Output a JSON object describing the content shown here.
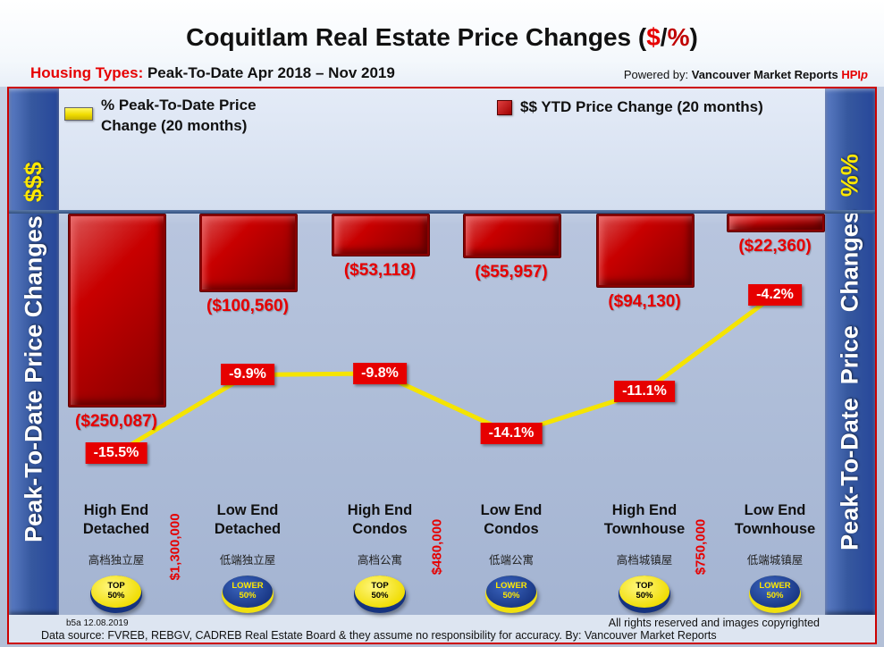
{
  "header": {
    "title_main": "Coquitlam Real Estate Price Changes (",
    "title_dollar": "$",
    "title_slash": "/",
    "title_percent": "%",
    "title_close": ")",
    "housing_label": "Housing Types:",
    "housing_range": " Peak-To-Date Apr 2018 – Nov 2019",
    "powered_by": "Powered by: ",
    "powered_brand": "Vancouver Market Reports ",
    "powered_hpi": "HPI",
    "powered_hpi_p": "p"
  },
  "legend": {
    "pct_label": "% Peak-To-Date Price\nChange (20 months)",
    "dollar_label": "$$ YTD Price Change (20 months)"
  },
  "sidebar_left": {
    "text": "Peak-To-Date Price Changes  ",
    "suffix": "$$$"
  },
  "sidebar_right": {
    "text": "Peak-To-Date  Price  Changes  ",
    "suffix": "%%"
  },
  "chart_data": {
    "type": "bar",
    "title": "Coquitlam Real Estate Price Changes ($/%)",
    "period": "Peak-To-Date Apr 2018 – Nov 2019",
    "categories": [
      "High End Detached",
      "Low End Detached",
      "High End Condos",
      "Low End Condos",
      "High End Townhouse",
      "Low End Townhouse"
    ],
    "categories_lines": [
      [
        "High End",
        "Detached"
      ],
      [
        "Low End",
        "Detached"
      ],
      [
        "High End",
        "Condos"
      ],
      [
        "Low End",
        "Condos"
      ],
      [
        "High End",
        "Townhouse"
      ],
      [
        "Low End",
        "Townhouse"
      ]
    ],
    "categories_chinese": [
      "高档独立屋",
      "低端独立屋",
      "高档公寓",
      "低端公寓",
      "高档城镇屋",
      "低端城镇屋"
    ],
    "series": [
      {
        "name": "$$ YTD Price Change (20 months)",
        "type": "bar",
        "color": "#cc0000",
        "values": [
          -250087,
          -100560,
          -53118,
          -55957,
          -94130,
          -22360
        ],
        "labels": [
          "($250,087)",
          "($100,560)",
          "($53,118)",
          "($55,957)",
          "($94,130)",
          "($22,360)"
        ]
      },
      {
        "name": "% Peak-To-Date Price Change (20 months)",
        "type": "line",
        "color": "#f5e400",
        "values": [
          -15.5,
          -9.9,
          -9.8,
          -14.1,
          -11.1,
          -4.2
        ],
        "labels": [
          "-15.5%",
          "-9.9%",
          "-9.8%",
          "-14.1%",
          "-11.1%",
          "-4.2%"
        ]
      }
    ],
    "segment_price_cutoffs": [
      "$1,300,000",
      "$480,000",
      "$750,000"
    ],
    "badges": [
      {
        "style": "top",
        "line1": "TOP",
        "line2": "50%"
      },
      {
        "style": "lower",
        "line1": "LOWER",
        "line2": "50%"
      },
      {
        "style": "top",
        "line1": "TOP",
        "line2": "50%"
      },
      {
        "style": "lower",
        "line1": "LOWER",
        "line2": "50%"
      },
      {
        "style": "top",
        "line1": "TOP",
        "line2": "50%"
      },
      {
        "style": "lower",
        "line1": "LOWER",
        "line2": "50%"
      }
    ],
    "baseline": 0,
    "grid": false,
    "legend_position": "top"
  },
  "footer": {
    "version": "b5a 12.08.2019",
    "rights": "All rights reserved and  images copyrighted",
    "source": "Data source: FVREB, REBGV, CADREB Real Estate Board & they assume no responsibility for accuracy. By: Vancouver Market Reports"
  },
  "colors": {
    "bar_red": "#cc0000",
    "line_yellow": "#f5e400",
    "pct_label_bg": "#e60000",
    "accent_red": "#e60000",
    "sidebar_blue": "#2f55a8",
    "badge_blue": "#16337f",
    "badge_yellow": "#f0e010"
  }
}
